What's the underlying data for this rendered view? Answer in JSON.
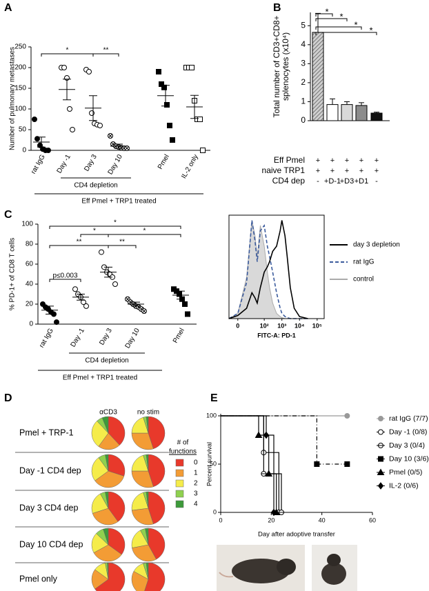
{
  "chart_data": [
    {
      "panel": "A",
      "type": "strip",
      "ylabel": "Number of pulmonary metastases",
      "categories": [
        "rat IgG",
        "Day -1",
        "Day 3",
        "Day 10",
        "Pmel",
        "IL-2 only"
      ],
      "markers": [
        "filled-circle",
        "open-circle",
        "open-circle",
        "crossed-circle",
        "filled-square",
        "open-square"
      ],
      "values": [
        [
          75,
          28,
          12,
          3,
          0,
          0
        ],
        [
          200,
          200,
          175,
          100,
          50
        ],
        [
          195,
          190,
          90,
          65,
          62,
          60
        ],
        [
          35,
          15,
          10,
          8,
          6,
          5,
          5
        ],
        [
          190,
          160,
          152,
          110,
          60,
          25
        ],
        [
          200,
          200,
          200,
          120,
          75,
          75,
          0
        ]
      ],
      "means": [
        20,
        147,
        102,
        10,
        132,
        105
      ],
      "sem": [
        12,
        25,
        30,
        5,
        25,
        28
      ],
      "ylim": [
        0,
        250
      ],
      "yticks": [
        0,
        50,
        100,
        150,
        200,
        250
      ],
      "annotations": [
        "*",
        "**"
      ],
      "group_labels": [
        "CD4 depletion",
        "Eff Pmel + TRP1 treated"
      ]
    },
    {
      "panel": "B",
      "type": "bar",
      "ylabel": [
        "Total number of CD3+CD8+",
        "splenocytes (x10⁴)"
      ],
      "values": [
        4.65,
        0.85,
        0.85,
        0.8,
        0.4
      ],
      "errors": [
        1.0,
        0.3,
        0.15,
        0.15,
        0.05
      ],
      "fills": [
        "hatch",
        "#ffffff",
        "#d9d9d9",
        "#8c8c8c",
        "#111111"
      ],
      "ylim": [
        0,
        5.7
      ],
      "yticks": [
        0,
        1,
        2,
        3,
        4,
        5
      ],
      "annotations": [
        "*",
        "*",
        "*",
        "*"
      ],
      "table": {
        "row_labels": [
          "Eff Pmel",
          "naive TRP1",
          "CD4 dep"
        ],
        "cells": [
          [
            "+",
            "+",
            "+",
            "+",
            "+"
          ],
          [
            "+",
            "+",
            "+",
            "+",
            "+"
          ],
          [
            "-",
            "+D-1",
            "+D3",
            "+D1",
            "-"
          ]
        ]
      }
    },
    {
      "panel": "C",
      "type": "strip",
      "ylabel": "% PD-1+ of CD8 T cells",
      "categories": [
        "rat IgG",
        "Day -1",
        "Day 3",
        "Day 10",
        "Pmel"
      ],
      "markers": [
        "filled-circle",
        "open-circle",
        "open-circle",
        "crossed-circle",
        "filled-square"
      ],
      "values": [
        [
          20,
          17,
          15,
          12,
          10,
          2
        ],
        [
          35,
          30,
          27,
          22,
          18
        ],
        [
          72,
          57,
          52,
          50,
          47,
          40
        ],
        [
          25,
          22,
          20,
          18,
          17,
          15,
          13
        ],
        [
          35,
          33,
          30,
          25,
          20,
          10
        ]
      ],
      "means": [
        14,
        27,
        52,
        20,
        29
      ],
      "sem": [
        4,
        3,
        5,
        2,
        4
      ],
      "ylim": [
        0,
        100
      ],
      "yticks": [
        0,
        20,
        40,
        60,
        80,
        100
      ],
      "annotations": [
        "*",
        "*",
        "*",
        "**",
        "**",
        "p≤0.003"
      ],
      "group_labels": [
        "CD4 depletion",
        "Eff Pmel + TRP1 treated"
      ]
    },
    {
      "type": "line",
      "xlabel": "FITC-A: PD-1",
      "x": [
        -10,
        0,
        10,
        20,
        30,
        40,
        60,
        100,
        150,
        200,
        300,
        500,
        800,
        1000,
        1500,
        2000,
        3000,
        5000,
        10000,
        30000
      ],
      "series": [
        {
          "name": "day 3 depletion",
          "color": "#000000",
          "values": [
            0,
            3,
            10,
            25,
            20,
            15,
            30,
            45,
            50,
            55,
            65,
            70,
            85,
            95,
            80,
            60,
            30,
            10,
            2,
            0
          ]
        },
        {
          "name": "rat IgG",
          "color": "#3a5a9c",
          "line_style": "dashed",
          "values": [
            0,
            5,
            35,
            95,
            75,
            55,
            85,
            90,
            70,
            60,
            45,
            25,
            10,
            5,
            2,
            1,
            0,
            0,
            0,
            0
          ]
        },
        {
          "name": "control",
          "color": "#aaaaaa",
          "fill": "#d9d9d9",
          "values": [
            0,
            5,
            40,
            95,
            80,
            60,
            90,
            70,
            45,
            30,
            15,
            5,
            2,
            1,
            0,
            0,
            0,
            0,
            0,
            0
          ]
        }
      ],
      "xlim": [
        -10,
        250000
      ],
      "xticks": [
        0,
        {
          "value": 100,
          "label": "10²"
        },
        {
          "value": 1000,
          "label": "10³"
        },
        {
          "value": 10000,
          "label": "10⁴"
        },
        {
          "value": 100000,
          "label": "10⁵"
        }
      ],
      "ylim": [
        0,
        100
      ]
    },
    {
      "panel": "D",
      "type": "pie",
      "column_labels": [
        "αCD3",
        "no stim"
      ],
      "row_labels": [
        "Pmel + TRP-1",
        "Day -1 CD4 dep",
        "Day 3 CD4 dep",
        "Day 10 CD4 dep",
        "Pmel only"
      ],
      "legend_title": [
        "# of",
        "functions"
      ],
      "categories": [
        "0",
        "1",
        "2",
        "3",
        "4"
      ],
      "colors": [
        "#e8392b",
        "#f39c35",
        "#f5ec4a",
        "#8fd14f",
        "#3d9a3a"
      ],
      "values": [
        [
          [
            38,
            22,
            28,
            6,
            6
          ],
          [
            45,
            30,
            20,
            3,
            2
          ]
        ],
        [
          [
            30,
            35,
            25,
            7,
            3
          ],
          [
            45,
            30,
            20,
            3,
            2
          ]
        ],
        [
          [
            40,
            30,
            22,
            5,
            3
          ],
          [
            45,
            28,
            22,
            3,
            2
          ]
        ],
        [
          [
            35,
            32,
            20,
            8,
            5
          ],
          [
            42,
            30,
            20,
            5,
            3
          ]
        ],
        [
          [
            65,
            20,
            12,
            2,
            1
          ],
          [
            55,
            28,
            12,
            3,
            2
          ]
        ]
      ]
    },
    {
      "panel": "E",
      "type": "step",
      "ylabel": "Percent survival",
      "xlabel": "Day after adoptive transfer",
      "xlim": [
        0,
        60
      ],
      "xticks": [
        0,
        20,
        40,
        60
      ],
      "ylim": [
        0,
        100
      ],
      "yticks": [
        0,
        50,
        100
      ],
      "series": [
        {
          "name": "rat IgG (7/7)",
          "color": "#999999",
          "marker": "filled-circle",
          "x": [
            0,
            50
          ],
          "values": [
            100,
            100
          ]
        },
        {
          "name": "Day -1 (0/8)",
          "color": "#000000",
          "marker": "open-circle",
          "x": [
            0,
            17,
            23
          ],
          "values": [
            100,
            62,
            0
          ]
        },
        {
          "name": "Day 3 (0/4)",
          "color": "#000000",
          "marker": "theta-circle",
          "x": [
            0,
            17,
            24
          ],
          "values": [
            100,
            40,
            0
          ]
        },
        {
          "name": "Day 10 (3/6)",
          "color": "#000000",
          "marker": "filled-square",
          "line_style": "dash-dot",
          "x": [
            0,
            38,
            50
          ],
          "values": [
            100,
            50,
            50
          ]
        },
        {
          "name": "Pmel (0/5)",
          "color": "#000000",
          "marker": "filled-triangle",
          "x": [
            0,
            15,
            19,
            22
          ],
          "values": [
            100,
            80,
            40,
            0
          ]
        },
        {
          "name": "IL-2 (0/6)",
          "color": "#000000",
          "marker": "filled-diamond",
          "x": [
            0,
            18,
            21
          ],
          "values": [
            100,
            80,
            0
          ]
        }
      ]
    }
  ]
}
